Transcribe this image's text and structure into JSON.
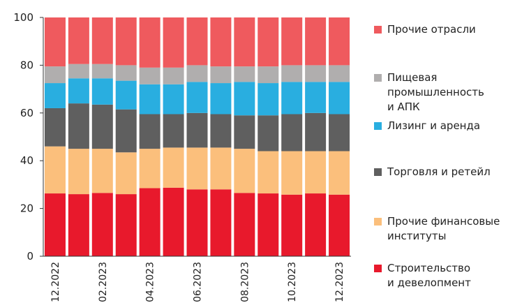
{
  "chart_data": {
    "type": "stacked_bar",
    "categories": [
      "12.2022",
      null,
      "02.2023",
      null,
      "04.2023",
      null,
      "06.2023",
      null,
      "08.2023",
      null,
      "10.2023",
      null,
      "12.2023"
    ],
    "series": [
      {
        "name": "Строительство\nи девелопмент",
        "color": "#e8192c",
        "values": [
          26.3,
          26,
          26.5,
          26,
          28.5,
          28.7,
          28,
          28,
          26.5,
          26.3,
          25.8,
          26.3,
          25.8
        ]
      },
      {
        "name": "Прочие финансовые\nинституты",
        "color": "#fbbf7c",
        "values": [
          19.7,
          19,
          18.5,
          17.5,
          16.5,
          16.8,
          17.5,
          17.5,
          18.5,
          17.7,
          18.2,
          17.7,
          18.2
        ]
      },
      {
        "name": "Торговля и ретейл",
        "color": "#5f5f5f",
        "values": [
          16,
          19,
          18.5,
          18,
          14.5,
          14,
          14.5,
          14,
          14,
          15,
          15.5,
          16,
          15.5
        ]
      },
      {
        "name": "Лизинг и аренда",
        "color": "#29aee0",
        "values": [
          10.5,
          10.5,
          11,
          12,
          12.5,
          12.5,
          13,
          13,
          14,
          13.5,
          13.5,
          13,
          13.5
        ]
      },
      {
        "name": "Пищевая\nпромышленность\nи АПК",
        "color": "#b0aeae",
        "values": [
          7,
          6,
          6,
          6.5,
          7,
          7,
          7,
          7,
          6.5,
          7,
          7,
          7,
          7
        ]
      },
      {
        "name": "Прочие отрасли",
        "color": "#ef5a5e",
        "values": [
          20.5,
          19.5,
          19.5,
          20,
          21,
          21,
          20,
          20.5,
          20.5,
          20.5,
          20,
          20,
          20
        ]
      }
    ],
    "ylim": [
      0,
      100
    ],
    "yticks": [
      0,
      20,
      40,
      60,
      80,
      100
    ],
    "grid": false
  }
}
